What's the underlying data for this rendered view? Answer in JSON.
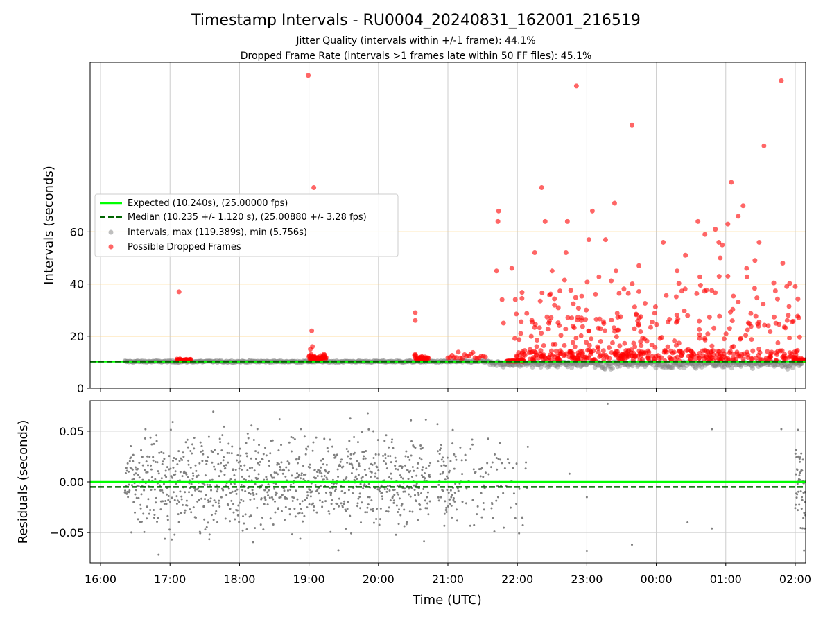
{
  "chart_data": {
    "type": "scatter",
    "title": "Timestamp Intervals - RU0004_20240831_162001_216519",
    "subtitles": [
      "Jitter Quality (intervals within +/-1 frame): 44.1%",
      "Dropped Frame Rate (intervals >1 frames late within 50 FF files): 45.1%"
    ],
    "xlabel": "Time (UTC)",
    "x_ticks": [
      "16:00",
      "17:00",
      "18:00",
      "19:00",
      "20:00",
      "21:00",
      "22:00",
      "23:00",
      "00:00",
      "01:00",
      "02:00"
    ],
    "x_range_hours": [
      15.85,
      26.15
    ],
    "grid": true,
    "colors": {
      "expected": "#00ff00",
      "median": "#006400",
      "intervals": "#808080",
      "dropped": "#ff0000",
      "threshold_lines": "#ffd27f"
    },
    "top": {
      "ylabel": "Intervals (seconds)",
      "y_ticks": [
        "0",
        "20",
        "40",
        "60"
      ],
      "ylim": [
        0,
        125
      ],
      "threshold_lines": [
        20,
        40,
        60
      ],
      "expected_value": 10.24,
      "median_value": 10.235,
      "legend_position": "center-left",
      "legend": [
        "Expected (10.240s), (25.00000 fps)",
        "Median (10.235 +/- 1.120 s), (25.00880 +/- 3.28 fps)",
        "Intervals, max (119.389s), min (5.756s)",
        "Possible Dropped Frames"
      ],
      "dropped_outliers": [
        {
          "t": 17.13,
          "v": 37
        },
        {
          "t": 18.99,
          "v": 120
        },
        {
          "t": 19.07,
          "v": 77
        },
        {
          "t": 19.04,
          "v": 22
        },
        {
          "t": 20.53,
          "v": 29
        },
        {
          "t": 20.53,
          "v": 26
        },
        {
          "t": 21.73,
          "v": 68
        },
        {
          "t": 21.72,
          "v": 64
        },
        {
          "t": 21.7,
          "v": 45
        },
        {
          "t": 21.78,
          "v": 34
        },
        {
          "t": 21.8,
          "v": 25
        },
        {
          "t": 21.92,
          "v": 46
        },
        {
          "t": 22.35,
          "v": 77
        },
        {
          "t": 22.4,
          "v": 64
        },
        {
          "t": 22.25,
          "v": 52
        },
        {
          "t": 22.5,
          "v": 45
        },
        {
          "t": 22.7,
          "v": 52
        },
        {
          "t": 22.72,
          "v": 64
        },
        {
          "t": 22.85,
          "v": 116
        },
        {
          "t": 23.08,
          "v": 68
        },
        {
          "t": 23.03,
          "v": 57
        },
        {
          "t": 23.27,
          "v": 57
        },
        {
          "t": 23.4,
          "v": 71
        },
        {
          "t": 23.42,
          "v": 45
        },
        {
          "t": 23.65,
          "v": 101
        },
        {
          "t": 23.75,
          "v": 47
        },
        {
          "t": 24.1,
          "v": 56
        },
        {
          "t": 24.3,
          "v": 45
        },
        {
          "t": 24.42,
          "v": 51
        },
        {
          "t": 24.6,
          "v": 64
        },
        {
          "t": 24.7,
          "v": 59
        },
        {
          "t": 24.85,
          "v": 61
        },
        {
          "t": 24.9,
          "v": 56
        },
        {
          "t": 24.95,
          "v": 55
        },
        {
          "t": 24.92,
          "v": 50
        },
        {
          "t": 25.03,
          "v": 63
        },
        {
          "t": 25.08,
          "v": 79
        },
        {
          "t": 25.18,
          "v": 66
        },
        {
          "t": 25.25,
          "v": 70
        },
        {
          "t": 25.3,
          "v": 46
        },
        {
          "t": 25.42,
          "v": 49
        },
        {
          "t": 25.48,
          "v": 56
        },
        {
          "t": 25.55,
          "v": 93
        },
        {
          "t": 25.8,
          "v": 118
        },
        {
          "t": 25.82,
          "v": 48
        },
        {
          "t": 26.0,
          "v": 39
        },
        {
          "t": 25.9,
          "v": 28
        }
      ]
    },
    "bottom": {
      "ylabel": "Residuals (seconds)",
      "y_ticks": [
        "0.05",
        "0.00",
        "−0.05"
      ],
      "ylim": [
        -0.08,
        0.08
      ],
      "expected_residual": 0.0,
      "median_residual": -0.005
    }
  }
}
